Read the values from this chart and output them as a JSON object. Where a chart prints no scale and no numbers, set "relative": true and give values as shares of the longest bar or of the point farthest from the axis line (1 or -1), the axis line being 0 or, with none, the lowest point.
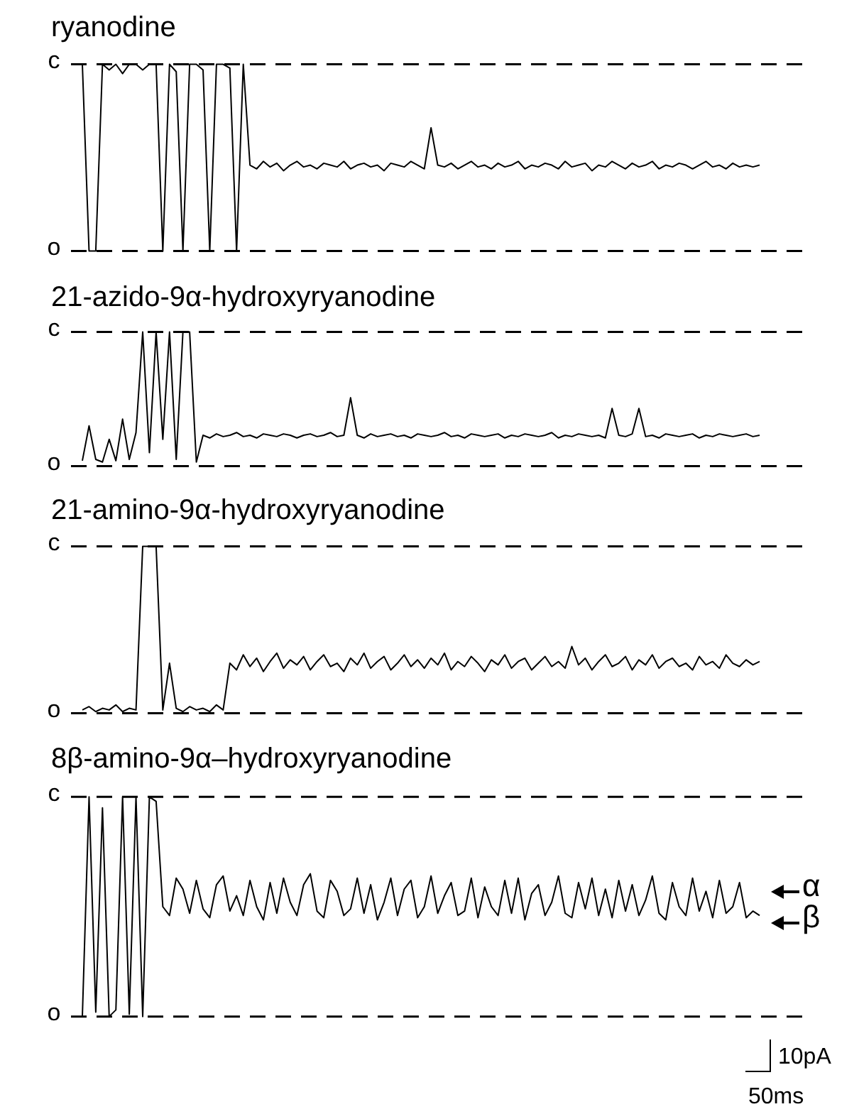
{
  "chart_data": [
    {
      "type": "line",
      "title": "ryanodine",
      "color": "#000000",
      "relative": true,
      "ref_lines": [
        {
          "axis": "y",
          "value": 1,
          "label": "c",
          "line_style": "dashed"
        },
        {
          "axis": "y",
          "value": 0,
          "label": "o",
          "line_style": "dashed"
        }
      ],
      "categories": [
        null,
        null,
        null,
        null,
        null,
        null,
        null,
        null,
        null,
        null,
        null,
        null,
        null,
        null,
        null,
        null,
        null,
        null,
        null,
        null,
        null,
        null,
        null,
        null,
        null,
        null,
        null,
        null,
        null,
        null,
        null,
        null,
        null,
        null,
        null,
        null,
        null,
        null,
        null,
        null,
        null,
        null,
        null,
        null,
        null,
        null,
        null,
        null,
        null,
        null,
        null,
        null,
        null,
        null,
        null,
        null,
        null,
        null,
        null,
        null,
        null,
        null,
        null,
        null,
        null,
        null,
        null,
        null,
        null,
        null,
        null,
        null,
        null,
        null,
        null,
        null,
        null,
        null,
        null,
        null,
        null,
        null,
        null,
        null,
        null,
        null,
        null,
        null,
        null,
        null,
        null,
        null,
        null,
        null,
        null,
        null,
        null,
        null,
        null,
        null,
        null,
        null
      ],
      "values": [
        1,
        0,
        0,
        1,
        0.97,
        1,
        0.95,
        1,
        1,
        0.97,
        1,
        1,
        0,
        1,
        0.96,
        0,
        1,
        1,
        0.97,
        0,
        1,
        1,
        0.98,
        0,
        1,
        0.46,
        0.44,
        0.48,
        0.45,
        0.47,
        0.43,
        0.46,
        0.48,
        0.45,
        0.46,
        0.44,
        0.47,
        0.46,
        0.45,
        0.48,
        0.44,
        0.46,
        0.47,
        0.45,
        0.46,
        0.43,
        0.47,
        0.46,
        0.45,
        0.48,
        0.46,
        0.44,
        0.66,
        0.46,
        0.45,
        0.47,
        0.44,
        0.46,
        0.48,
        0.45,
        0.46,
        0.44,
        0.47,
        0.45,
        0.46,
        0.48,
        0.44,
        0.46,
        0.45,
        0.47,
        0.46,
        0.44,
        0.48,
        0.45,
        0.46,
        0.47,
        0.43,
        0.46,
        0.45,
        0.48,
        0.46,
        0.44,
        0.47,
        0.45,
        0.46,
        0.48,
        0.44,
        0.46,
        0.45,
        0.47,
        0.46,
        0.44,
        0.46,
        0.48,
        0.45,
        0.46,
        0.44,
        0.47,
        0.45,
        0.46,
        0.45,
        0.46
      ]
    },
    {
      "type": "line",
      "title": "21-azido-9α-hydroxyryanodine",
      "color": "#000000",
      "relative": true,
      "ref_lines": [
        {
          "axis": "y",
          "value": 1,
          "label": "c",
          "line_style": "dashed"
        },
        {
          "axis": "y",
          "value": 0,
          "label": "o",
          "line_style": "dashed"
        }
      ],
      "categories": [
        null,
        null,
        null,
        null,
        null,
        null,
        null,
        null,
        null,
        null,
        null,
        null,
        null,
        null,
        null,
        null,
        null,
        null,
        null,
        null,
        null,
        null,
        null,
        null,
        null,
        null,
        null,
        null,
        null,
        null,
        null,
        null,
        null,
        null,
        null,
        null,
        null,
        null,
        null,
        null,
        null,
        null,
        null,
        null,
        null,
        null,
        null,
        null,
        null,
        null,
        null,
        null,
        null,
        null,
        null,
        null,
        null,
        null,
        null,
        null,
        null,
        null,
        null,
        null,
        null,
        null,
        null,
        null,
        null,
        null,
        null,
        null,
        null,
        null,
        null,
        null,
        null,
        null,
        null,
        null,
        null,
        null,
        null,
        null,
        null,
        null,
        null,
        null,
        null,
        null,
        null,
        null,
        null,
        null,
        null,
        null,
        null,
        null,
        null,
        null,
        null,
        null
      ],
      "values": [
        0.04,
        0.3,
        0.05,
        0.03,
        0.2,
        0.04,
        0.35,
        0.05,
        0.25,
        1,
        0.1,
        1,
        0.2,
        1,
        0.05,
        1,
        1,
        0.03,
        0.23,
        0.21,
        0.24,
        0.22,
        0.23,
        0.25,
        0.22,
        0.23,
        0.21,
        0.24,
        0.23,
        0.22,
        0.24,
        0.23,
        0.21,
        0.23,
        0.24,
        0.22,
        0.23,
        0.25,
        0.22,
        0.23,
        0.51,
        0.23,
        0.21,
        0.24,
        0.22,
        0.23,
        0.24,
        0.22,
        0.23,
        0.21,
        0.24,
        0.23,
        0.22,
        0.23,
        0.25,
        0.22,
        0.23,
        0.21,
        0.24,
        0.23,
        0.22,
        0.23,
        0.24,
        0.21,
        0.23,
        0.22,
        0.24,
        0.23,
        0.22,
        0.23,
        0.25,
        0.21,
        0.23,
        0.22,
        0.24,
        0.23,
        0.22,
        0.23,
        0.21,
        0.43,
        0.23,
        0.22,
        0.24,
        0.43,
        0.22,
        0.23,
        0.21,
        0.24,
        0.23,
        0.22,
        0.23,
        0.24,
        0.21,
        0.23,
        0.22,
        0.24,
        0.23,
        0.22,
        0.23,
        0.24,
        0.22,
        0.23
      ]
    },
    {
      "type": "line",
      "title": "21-amino-9α-hydroxyryanodine",
      "color": "#000000",
      "relative": true,
      "ref_lines": [
        {
          "axis": "y",
          "value": 1,
          "label": "c",
          "line_style": "dashed"
        },
        {
          "axis": "y",
          "value": 0,
          "label": "o",
          "line_style": "dashed"
        }
      ],
      "categories": [
        null,
        null,
        null,
        null,
        null,
        null,
        null,
        null,
        null,
        null,
        null,
        null,
        null,
        null,
        null,
        null,
        null,
        null,
        null,
        null,
        null,
        null,
        null,
        null,
        null,
        null,
        null,
        null,
        null,
        null,
        null,
        null,
        null,
        null,
        null,
        null,
        null,
        null,
        null,
        null,
        null,
        null,
        null,
        null,
        null,
        null,
        null,
        null,
        null,
        null,
        null,
        null,
        null,
        null,
        null,
        null,
        null,
        null,
        null,
        null,
        null,
        null,
        null,
        null,
        null,
        null,
        null,
        null,
        null,
        null,
        null,
        null,
        null,
        null,
        null,
        null,
        null,
        null,
        null,
        null,
        null,
        null,
        null,
        null,
        null,
        null,
        null,
        null,
        null,
        null,
        null,
        null,
        null,
        null,
        null,
        null,
        null,
        null,
        null,
        null,
        null,
        null
      ],
      "values": [
        0.02,
        0.04,
        0.01,
        0.03,
        0.02,
        0.05,
        0.01,
        0.03,
        0.02,
        1,
        1,
        1,
        0.02,
        0.3,
        0.03,
        0.01,
        0.04,
        0.02,
        0.03,
        0.01,
        0.05,
        0.02,
        0.3,
        0.26,
        0.35,
        0.28,
        0.33,
        0.25,
        0.31,
        0.36,
        0.27,
        0.32,
        0.29,
        0.34,
        0.26,
        0.31,
        0.35,
        0.28,
        0.3,
        0.25,
        0.33,
        0.29,
        0.36,
        0.27,
        0.31,
        0.34,
        0.26,
        0.3,
        0.35,
        0.28,
        0.32,
        0.27,
        0.33,
        0.29,
        0.36,
        0.26,
        0.31,
        0.28,
        0.34,
        0.3,
        0.25,
        0.32,
        0.29,
        0.35,
        0.27,
        0.31,
        0.33,
        0.26,
        0.3,
        0.34,
        0.28,
        0.31,
        0.27,
        0.4,
        0.29,
        0.33,
        0.26,
        0.31,
        0.35,
        0.28,
        0.3,
        0.34,
        0.26,
        0.32,
        0.29,
        0.35,
        0.27,
        0.31,
        0.33,
        0.28,
        0.3,
        0.26,
        0.34,
        0.29,
        0.31,
        0.27,
        0.35,
        0.3,
        0.28,
        0.32,
        0.29,
        0.31
      ]
    },
    {
      "type": "line",
      "title": "8β-amino-9α–hydroxyryanodine",
      "color": "#000000",
      "relative": true,
      "ref_lines": [
        {
          "axis": "y",
          "value": 1,
          "label": "c",
          "line_style": "dashed"
        },
        {
          "axis": "y",
          "value": 0,
          "label": "o",
          "line_style": "dashed"
        }
      ],
      "annotations": [
        "α",
        "β",
        "10pA",
        "50ms"
      ],
      "categories": [
        null,
        null,
        null,
        null,
        null,
        null,
        null,
        null,
        null,
        null,
        null,
        null,
        null,
        null,
        null,
        null,
        null,
        null,
        null,
        null,
        null,
        null,
        null,
        null,
        null,
        null,
        null,
        null,
        null,
        null,
        null,
        null,
        null,
        null,
        null,
        null,
        null,
        null,
        null,
        null,
        null,
        null,
        null,
        null,
        null,
        null,
        null,
        null,
        null,
        null,
        null,
        null,
        null,
        null,
        null,
        null,
        null,
        null,
        null,
        null,
        null,
        null,
        null,
        null,
        null,
        null,
        null,
        null,
        null,
        null,
        null,
        null,
        null,
        null,
        null,
        null,
        null,
        null,
        null,
        null,
        null,
        null,
        null,
        null,
        null,
        null,
        null,
        null,
        null,
        null,
        null,
        null,
        null,
        null,
        null,
        null,
        null,
        null,
        null,
        null,
        null,
        null
      ],
      "values": [
        0,
        1,
        0.02,
        0.95,
        0,
        0.03,
        1,
        0.01,
        1,
        0,
        1,
        0.98,
        0.5,
        0.46,
        0.63,
        0.58,
        0.47,
        0.62,
        0.49,
        0.45,
        0.6,
        0.64,
        0.48,
        0.55,
        0.46,
        0.62,
        0.5,
        0.44,
        0.61,
        0.47,
        0.63,
        0.52,
        0.46,
        0.6,
        0.65,
        0.48,
        0.45,
        0.62,
        0.57,
        0.46,
        0.49,
        0.63,
        0.47,
        0.6,
        0.44,
        0.52,
        0.63,
        0.46,
        0.58,
        0.62,
        0.45,
        0.5,
        0.64,
        0.47,
        0.55,
        0.61,
        0.46,
        0.48,
        0.63,
        0.45,
        0.59,
        0.5,
        0.46,
        0.62,
        0.47,
        0.63,
        0.44,
        0.56,
        0.6,
        0.46,
        0.52,
        0.64,
        0.47,
        0.45,
        0.61,
        0.49,
        0.63,
        0.46,
        0.58,
        0.45,
        0.62,
        0.48,
        0.6,
        0.46,
        0.53,
        0.64,
        0.47,
        0.44,
        0.61,
        0.5,
        0.46,
        0.63,
        0.48,
        0.57,
        0.45,
        0.62,
        0.47,
        0.5,
        0.61,
        0.45,
        0.48,
        0.46
      ]
    }
  ]
}
